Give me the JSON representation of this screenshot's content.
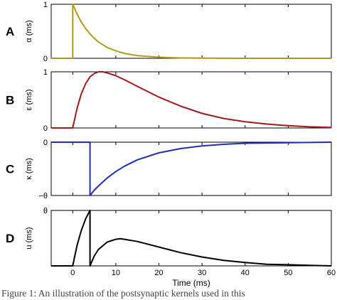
{
  "chart_data": [
    {
      "type": "line",
      "panel_label": "A",
      "ylabel": "α (ms)",
      "xlim": [
        -5,
        60
      ],
      "ylim": [
        0,
        1
      ],
      "yticks": [
        {
          "value": 0,
          "label": "0"
        },
        {
          "value": 1,
          "label": "1"
        }
      ],
      "grid": false,
      "series": [
        {
          "color": "#b09a17",
          "x": [
            -5,
            0,
            0,
            1,
            2,
            3,
            4,
            5,
            6,
            8,
            10,
            12,
            15,
            20,
            25,
            30,
            40,
            50,
            60
          ],
          "y": [
            0,
            0,
            1,
            0.82,
            0.67,
            0.55,
            0.45,
            0.37,
            0.3,
            0.2,
            0.14,
            0.09,
            0.05,
            0.02,
            0.007,
            0.002,
            0,
            0,
            0
          ]
        }
      ]
    },
    {
      "type": "line",
      "panel_label": "B",
      "ylabel": "ε (ms)",
      "xlim": [
        -5,
        60
      ],
      "ylim": [
        0,
        1
      ],
      "yticks": [
        {
          "value": 0,
          "label": "0"
        },
        {
          "value": 1,
          "label": "1"
        }
      ],
      "grid": false,
      "series": [
        {
          "color": "#a31a1a",
          "x": [
            -5,
            0,
            1,
            2,
            3,
            4,
            5,
            6,
            7,
            8,
            10,
            12,
            15,
            20,
            25,
            30,
            35,
            40,
            45,
            50,
            55,
            60
          ],
          "y": [
            0,
            0,
            0.35,
            0.61,
            0.79,
            0.91,
            0.97,
            1.0,
            1.0,
            0.98,
            0.93,
            0.86,
            0.74,
            0.55,
            0.39,
            0.26,
            0.17,
            0.11,
            0.07,
            0.04,
            0.02,
            0.01
          ]
        }
      ]
    },
    {
      "type": "line",
      "panel_label": "C",
      "ylabel": "κ (ms)",
      "xlim": [
        -5,
        60
      ],
      "ylim": [
        -1,
        0
      ],
      "yticks": [
        {
          "value": -1,
          "label": "−θ"
        },
        {
          "value": 0,
          "label": "0"
        }
      ],
      "grid": false,
      "series": [
        {
          "color": "#1f2fb8",
          "x": [
            -5,
            4,
            4,
            5,
            6,
            8,
            10,
            12,
            15,
            20,
            25,
            30,
            35,
            40,
            50,
            60
          ],
          "y": [
            0,
            0,
            -1,
            -0.9,
            -0.82,
            -0.67,
            -0.55,
            -0.45,
            -0.33,
            -0.2,
            -0.12,
            -0.07,
            -0.04,
            -0.02,
            -0.01,
            0
          ]
        }
      ]
    },
    {
      "type": "line",
      "panel_label": "D",
      "ylabel": "u (ms)",
      "xlabel": "Time (ms)",
      "xlim": [
        -5,
        60
      ],
      "ylim": [
        0,
        1
      ],
      "yticks": [
        {
          "value": 1,
          "label": "θ"
        }
      ],
      "xticks": [
        0,
        10,
        20,
        30,
        40,
        50,
        60
      ],
      "grid": false,
      "series": [
        {
          "color": "#000000",
          "x": [
            -5,
            0,
            1,
            2,
            3,
            4,
            4,
            5,
            6,
            8,
            10,
            11,
            12,
            15,
            20,
            25,
            30,
            35,
            40,
            45,
            50,
            55,
            60
          ],
          "y": [
            0,
            0,
            0.37,
            0.64,
            0.85,
            1.0,
            0,
            0.18,
            0.3,
            0.43,
            0.48,
            0.49,
            0.48,
            0.44,
            0.34,
            0.24,
            0.16,
            0.1,
            0.06,
            0.03,
            0.02,
            0.01,
            0
          ]
        }
      ]
    }
  ],
  "caption": "Figure 1: An illustration of the postsynaptic kernels used in this"
}
